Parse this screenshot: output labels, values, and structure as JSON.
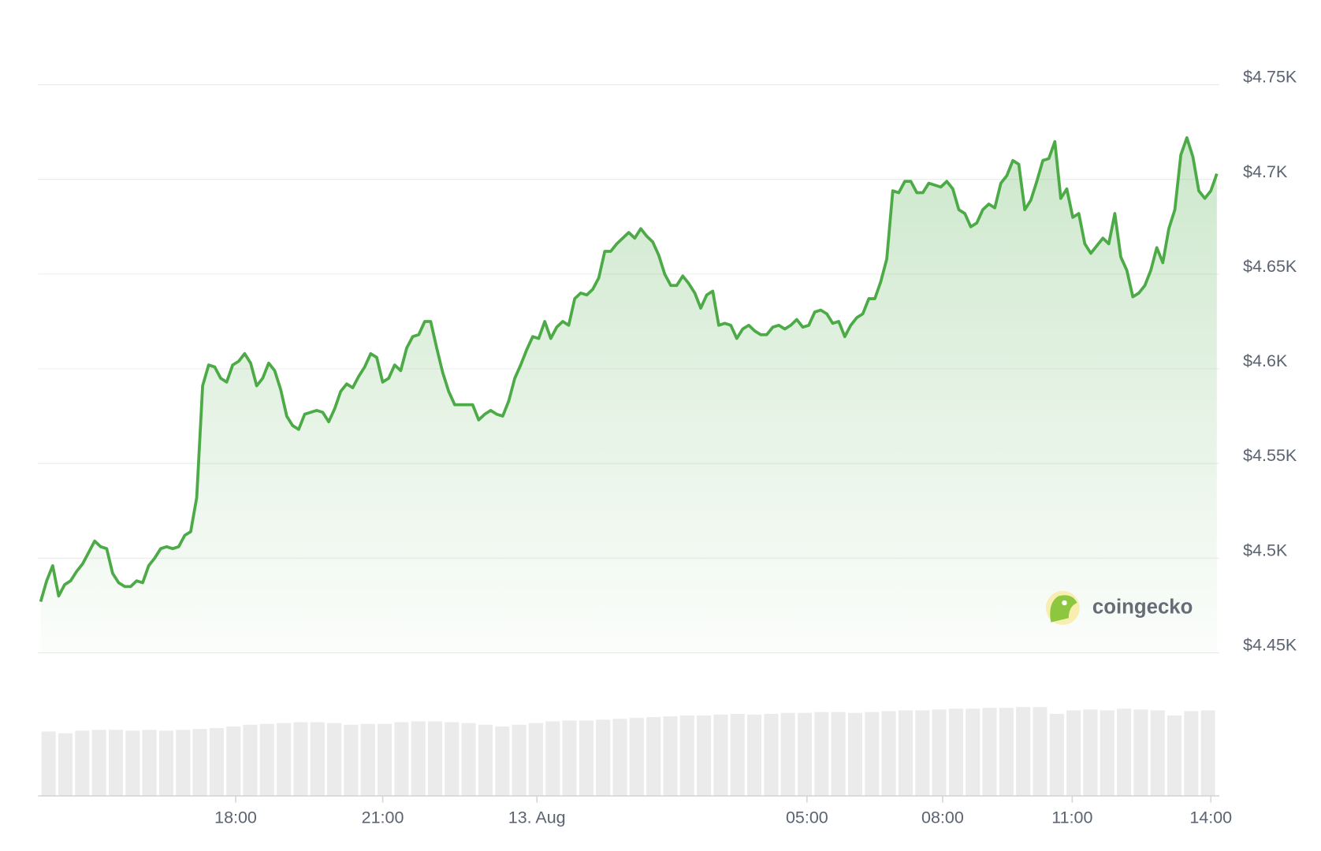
{
  "chart_data": {
    "type": "area",
    "color": "#4caa47",
    "values": [
      4477,
      4488,
      4496,
      4480,
      4486,
      4488,
      4493,
      4497,
      4503,
      4509,
      4506,
      4505,
      4492,
      4487,
      4485,
      4485,
      4488,
      4487,
      4496,
      4500,
      4505,
      4506,
      4505,
      4506,
      4512,
      4514,
      4532,
      4591,
      4602,
      4601,
      4595,
      4593,
      4602,
      4604,
      4608,
      4603,
      4591,
      4595,
      4603,
      4599,
      4589,
      4575,
      4570,
      4568,
      4576,
      4577,
      4578,
      4577,
      4572,
      4579,
      4588,
      4592,
      4590,
      4596,
      4601,
      4608,
      4606,
      4593,
      4595,
      4602,
      4599,
      4611,
      4617,
      4618,
      4625,
      4625,
      4611,
      4598,
      4588,
      4581,
      4581,
      4581,
      4581,
      4573,
      4576,
      4578,
      4576,
      4575,
      4583,
      4595,
      4602,
      4610,
      4617,
      4616,
      4625,
      4616,
      4622,
      4625,
      4623,
      4637,
      4640,
      4639,
      4642,
      4648,
      4662,
      4662,
      4666,
      4669,
      4672,
      4669,
      4674,
      4670,
      4667,
      4660,
      4650,
      4644,
      4644,
      4649,
      4645,
      4640,
      4632,
      4639,
      4641,
      4623,
      4624,
      4623,
      4616,
      4621,
      4623,
      4620,
      4618,
      4618,
      4622,
      4623,
      4621,
      4623,
      4626,
      4622,
      4623,
      4630,
      4631,
      4629,
      4624,
      4625,
      4617,
      4623,
      4627,
      4629,
      4637,
      4637,
      4646,
      4658,
      4694,
      4693,
      4699,
      4699,
      4693,
      4693,
      4698,
      4697,
      4696,
      4699,
      4695,
      4684,
      4682,
      4675,
      4677,
      4684,
      4687,
      4685,
      4698,
      4702,
      4710,
      4708,
      4684,
      4689,
      4699,
      4710,
      4711,
      4720,
      4690,
      4695,
      4680,
      4682,
      4666,
      4661,
      4665,
      4669,
      4666,
      4682,
      4659,
      4652,
      4638,
      4640,
      4644,
      4652,
      4664,
      4656,
      4674,
      4684,
      4713,
      4722,
      4712,
      4694,
      4690,
      4694,
      4703
    ],
    "xlim": [
      0,
      196
    ],
    "xticks": [
      {
        "value": 32.5,
        "label": "18:00"
      },
      {
        "value": 57,
        "label": "21:00"
      },
      {
        "value": 82.7,
        "label": "13. Aug"
      },
      {
        "value": 127.7,
        "label": "05:00"
      },
      {
        "value": 150.3,
        "label": "08:00"
      },
      {
        "value": 171.9,
        "label": "11:00"
      },
      {
        "value": 195,
        "label": "14:00"
      }
    ],
    "ylim": [
      4450,
      4750
    ],
    "yticks": [
      {
        "value": 4450,
        "label": "$4.45K"
      },
      {
        "value": 4500,
        "label": "$4.5K"
      },
      {
        "value": 4550,
        "label": "$4.55K"
      },
      {
        "value": 4600,
        "label": "$4.6K"
      },
      {
        "value": 4650,
        "label": "$4.65K"
      },
      {
        "value": 4700,
        "label": "$4.7K"
      },
      {
        "value": 4750,
        "label": "$4.75K"
      }
    ],
    "grid": true,
    "volume": {
      "color": "#ebebeb",
      "ylim": [
        0,
        110
      ],
      "values": [
        76,
        74,
        77,
        78,
        78,
        77,
        78,
        77,
        78,
        79,
        80,
        82,
        84,
        85,
        86,
        87,
        87,
        86,
        84,
        85,
        85,
        87,
        88,
        88,
        87,
        86,
        84,
        82,
        84,
        86,
        88,
        89,
        89,
        90,
        91,
        92,
        93,
        94,
        95,
        95,
        96,
        97,
        96,
        97,
        98,
        98,
        99,
        99,
        98,
        99,
        100,
        101,
        101,
        102,
        103,
        103,
        104,
        104,
        105,
        105,
        97,
        101,
        102,
        101,
        103,
        102,
        101,
        95,
        100,
        101
      ]
    },
    "brand": "coingecko"
  }
}
